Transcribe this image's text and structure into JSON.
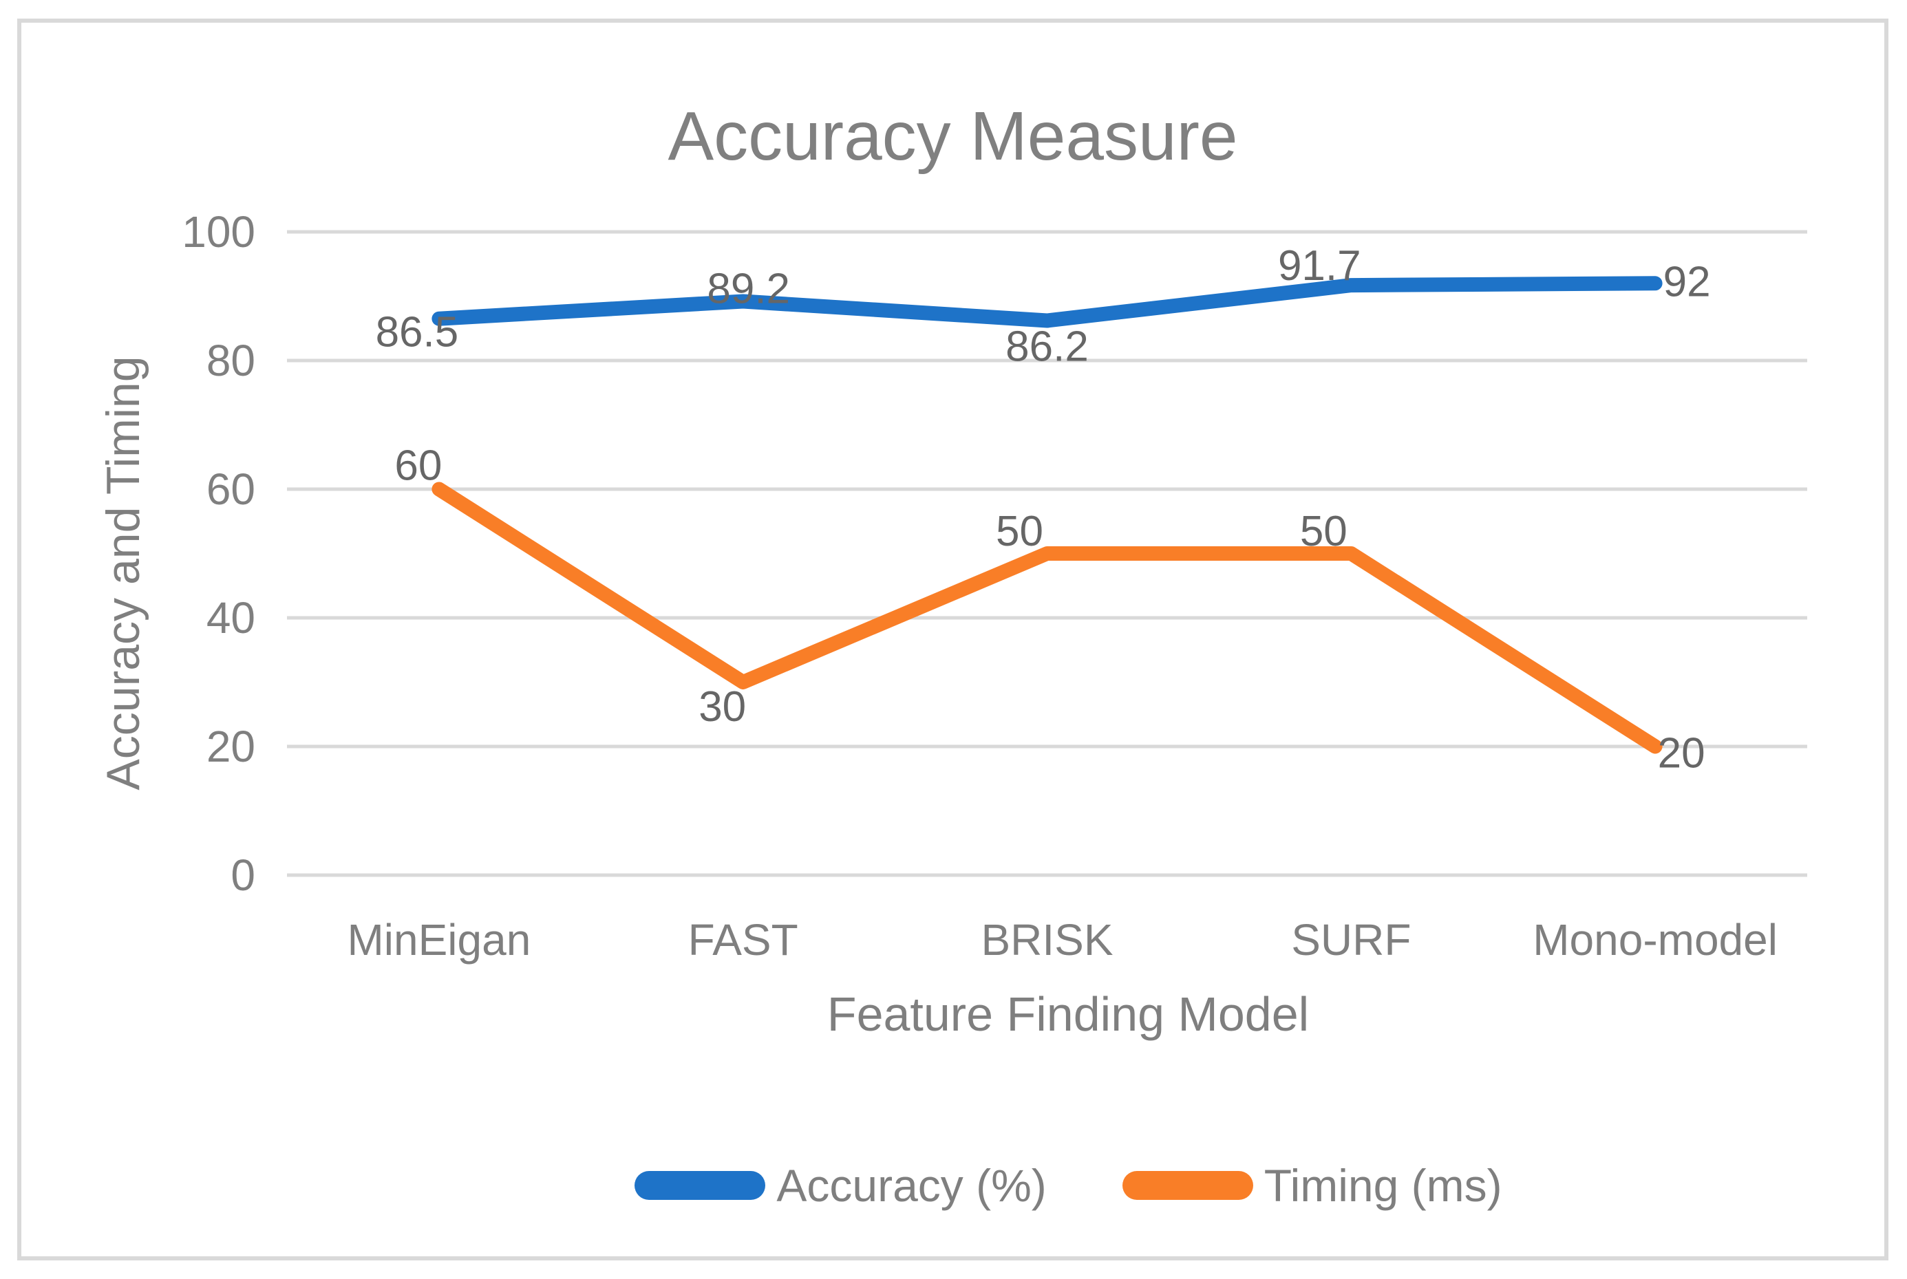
{
  "chart": {
    "title": "Accuracy Measure",
    "y_axis_title": "Accuracy and Timing",
    "x_axis_title": "Feature Finding Model"
  },
  "colors": {
    "accuracy_blue": "#1e73c8",
    "timing_orange": "#f97e27",
    "gridline_gray": "#d9d9d9",
    "frame_border_gray": "#d9d9d9",
    "title_gray": "#808080",
    "axis_text_gray": "#7f7f7f",
    "data_label_gray": "#666666"
  },
  "chart_data": {
    "type": "line",
    "title": "Accuracy Measure",
    "xlabel": "Feature Finding Model",
    "ylabel": "Accuracy and Timing",
    "categories": [
      "MinEigan",
      "FAST",
      "BRISK",
      "SURF",
      "Mono-model"
    ],
    "series": [
      {
        "name": "Accuracy (%)",
        "color": "#1e73c8",
        "values": [
          86.5,
          89.2,
          86.2,
          91.7,
          92
        ],
        "labels": [
          "86.5",
          "89.2",
          "86.2",
          "91.7",
          "92"
        ]
      },
      {
        "name": "Timing (ms)",
        "color": "#f97e27",
        "values": [
          60,
          30,
          50,
          50,
          20
        ],
        "labels": [
          "60",
          "30",
          "50",
          "50",
          "20"
        ]
      }
    ],
    "ylim": [
      0,
      100
    ],
    "yticks": [
      0,
      20,
      40,
      60,
      80,
      100
    ],
    "grid": "horizontal-only",
    "gridline_color": "#d9d9d9",
    "legend_position": "bottom",
    "data_labels_shown": true
  },
  "legend": {
    "items": [
      {
        "label": "Accuracy (%)",
        "color": "#1e73c8"
      },
      {
        "label": "Timing (ms)",
        "color": "#f97e27"
      }
    ]
  }
}
